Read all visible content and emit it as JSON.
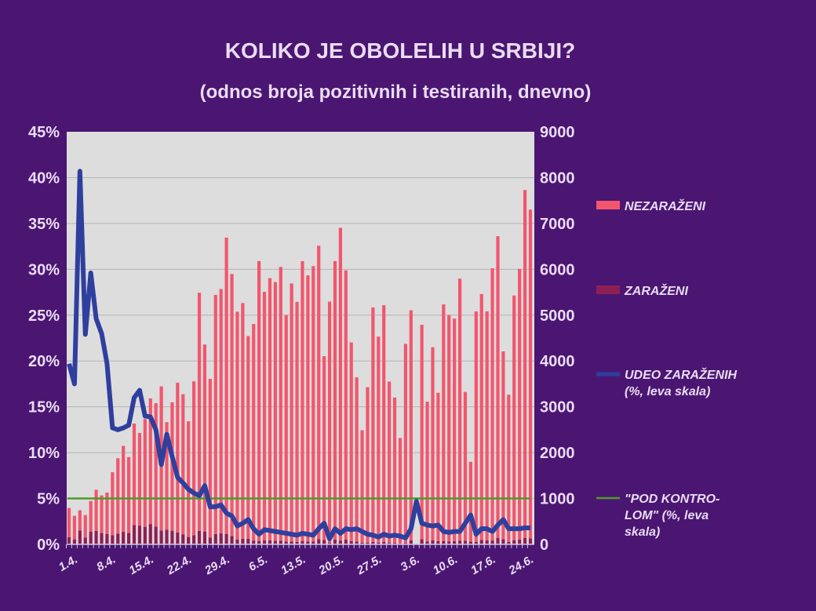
{
  "chart_data": {
    "type": "bar",
    "title": "KOLIKO JE OBOLELIH U SRBIJI?",
    "subtitle": "(odnos broja pozitivnih i testiranih, dnevno)",
    "x_start": "1.4.",
    "x_end": "25.6.",
    "x_tick_labels": [
      "1.4.",
      "8.4.",
      "15.4.",
      "22.4.",
      "29.4.",
      "6.5.",
      "13.5.",
      "20.5.",
      "27.5.",
      "3.6.",
      "10.6.",
      "17.6.",
      "24.6."
    ],
    "y_left": {
      "range": [
        0,
        45
      ],
      "ticks": [
        "0%",
        "5%",
        "10%",
        "15%",
        "20%",
        "25%",
        "30%",
        "35%",
        "40%",
        "45%"
      ]
    },
    "y_right": {
      "range": [
        0,
        9000
      ],
      "ticks": [
        "0",
        "1000",
        "2000",
        "3000",
        "4000",
        "5000",
        "6000",
        "7000",
        "8000",
        "9000"
      ]
    },
    "grid": true,
    "legend_position": "right",
    "series": [
      {
        "name": "NEZARAŽENI",
        "kind": "stacked-bar",
        "axis": "right",
        "color": "#f2566d",
        "values": [
          637,
          513,
          441,
          493,
          665,
          897,
          822,
          907,
          1374,
          1644,
          1874,
          1656,
          2213,
          2020,
          2350,
          2741,
          2695,
          3146,
          2346,
          2802,
          3269,
          3057,
          2523,
          3357,
          5199,
          4081,
          3463,
          5218,
          5330,
          6464,
          5716,
          4973,
          5143,
          4422,
          4725,
          6111,
          5420,
          5720,
          5642,
          5972,
          4942,
          5628,
          5236,
          6105,
          5803,
          6009,
          6404,
          4011,
          5263,
          6074,
          6822,
          5876,
          4334,
          3580,
          2454,
          3390,
          5115,
          4496,
          5159,
          3518,
          3171,
          2297,
          4343,
          5019,
          null,
          4679,
          3046,
          4214,
          3237,
          5161,
          4937,
          4854,
          5714,
          3249,
          1742,
          5025,
          5367,
          4995,
          5937,
          6581,
          4095,
          3209,
          5337,
          5907,
          7590,
          7171
        ]
      },
      {
        "name": "ZARAŽENI",
        "kind": "stacked-bar",
        "axis": "right",
        "color": "#8e1f55",
        "values": [
          156,
          109,
          303,
          147,
          280,
          293,
          246,
          223,
          200,
          235,
          273,
          247,
          422,
          408,
          383,
          443,
          385,
          300,
          320,
          297,
          257,
          219,
          161,
          199,
          291,
          279,
          148,
          223,
          239,
          228,
          183,
          102,
          121,
          123,
          82,
          68,
          88,
          87,
          80,
          79,
          60,
          63,
          53,
          74,
          65,
          61,
          111,
          94,
          32,
          105,
          83,
          102,
          70,
          62,
          35,
          38,
          52,
          36,
          57,
          32,
          32,
          21,
          31,
          87,
          null,
          110,
          65,
          86,
          69,
          73,
          65,
          69,
          81,
          76,
          58,
          56,
          93,
          86,
          84,
          141,
          114,
          55,
          92,
          102,
          139,
          131
        ]
      },
      {
        "name": "UDEO ZARAŽENIH",
        "name_line2": "(%, leva skala)",
        "kind": "line",
        "axis": "left",
        "color": "#2f3f9e",
        "values": [
          19.7,
          17.5,
          40.7,
          22.9,
          29.6,
          24.6,
          23.0,
          19.7,
          12.7,
          12.5,
          12.7,
          13.0,
          16.0,
          16.8,
          14.0,
          13.9,
          12.5,
          8.7,
          12.0,
          9.6,
          7.3,
          6.7,
          6.0,
          5.6,
          5.3,
          6.4,
          4.1,
          4.1,
          4.3,
          3.4,
          3.1,
          2.0,
          2.3,
          2.7,
          1.7,
          1.1,
          1.6,
          1.5,
          1.4,
          1.3,
          1.2,
          1.1,
          1.0,
          1.2,
          1.1,
          1.0,
          1.7,
          2.3,
          0.6,
          1.7,
          1.2,
          1.7,
          1.6,
          1.7,
          1.4,
          1.1,
          1.0,
          0.8,
          1.1,
          0.9,
          1.0,
          0.9,
          0.7,
          1.7,
          4.7,
          2.3,
          2.1,
          2.0,
          2.1,
          1.4,
          1.3,
          1.4,
          1.4,
          2.3,
          3.2,
          1.1,
          1.7,
          1.7,
          1.4,
          2.1,
          2.7,
          1.7,
          1.7,
          1.7,
          1.8,
          1.8
        ]
      },
      {
        "name": "\"POD KONTRO-",
        "name_line2": "LOM\"       (%, leva",
        "name_line3": "skala)",
        "kind": "line",
        "axis": "left",
        "color": "#4f9a2c",
        "constant": 5
      }
    ]
  }
}
